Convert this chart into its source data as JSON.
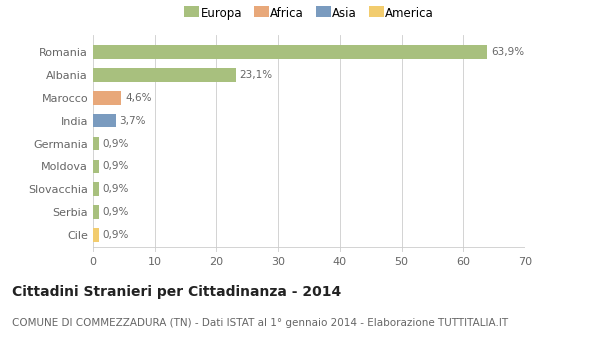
{
  "categories": [
    "Cile",
    "Serbia",
    "Slovacchia",
    "Moldova",
    "Germania",
    "India",
    "Marocco",
    "Albania",
    "Romania"
  ],
  "values": [
    0.9,
    0.9,
    0.9,
    0.9,
    0.9,
    3.7,
    4.6,
    23.1,
    63.9
  ],
  "labels": [
    "0,9%",
    "0,9%",
    "0,9%",
    "0,9%",
    "0,9%",
    "3,7%",
    "4,6%",
    "23,1%",
    "63,9%"
  ],
  "colors": [
    "#f2cc6e",
    "#a8c07e",
    "#a8c07e",
    "#a8c07e",
    "#a8c07e",
    "#7a9bbf",
    "#e8a87a",
    "#a8c07e",
    "#a8c07e"
  ],
  "legend_items": [
    {
      "label": "Europa",
      "color": "#a8c07e"
    },
    {
      "label": "Africa",
      "color": "#e8a87a"
    },
    {
      "label": "Asia",
      "color": "#7a9bbf"
    },
    {
      "label": "America",
      "color": "#f2cc6e"
    }
  ],
  "xlim": [
    0,
    70
  ],
  "xticks": [
    0,
    10,
    20,
    30,
    40,
    50,
    60,
    70
  ],
  "title": "Cittadini Stranieri per Cittadinanza - 2014",
  "subtitle": "COMUNE DI COMMEZZADURA (TN) - Dati ISTAT al 1° gennaio 2014 - Elaborazione TUTTITALIA.IT",
  "background_color": "#ffffff",
  "bar_height": 0.6,
  "grid_color": "#cccccc",
  "text_color": "#666666",
  "label_fontsize": 7.5,
  "title_fontsize": 10,
  "subtitle_fontsize": 7.5,
  "tick_fontsize": 8
}
